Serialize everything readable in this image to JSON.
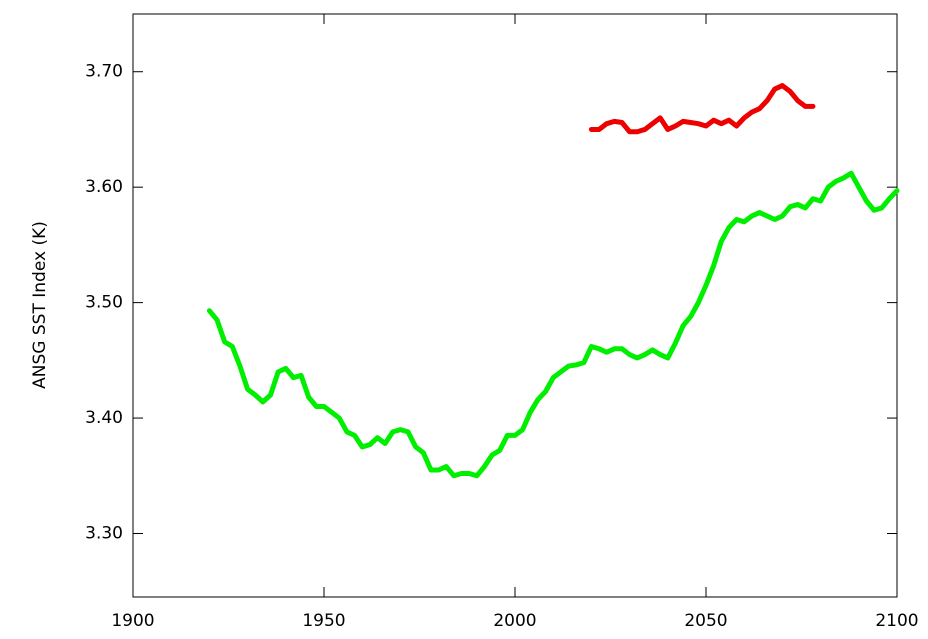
{
  "chart_data": {
    "type": "line",
    "y_label": "ANSG SST Index (K)",
    "xlim": [
      1900,
      2100
    ],
    "xticks": [
      1900,
      1950,
      2000,
      2050,
      2100
    ],
    "ylim": [
      3.245,
      3.75
    ],
    "yticks": [
      {
        "value": 3.3,
        "label": "3.30"
      },
      {
        "value": 3.4,
        "label": "3.40"
      },
      {
        "value": 3.5,
        "label": "3.50"
      },
      {
        "value": 3.6,
        "label": "3.60"
      },
      {
        "value": 3.7,
        "label": "3.70"
      }
    ],
    "grid": false,
    "series": [
      {
        "color": "#00ee00",
        "x": [
          1920,
          1922,
          1924,
          1926,
          1928,
          1930,
          1932,
          1934,
          1936,
          1938,
          1940,
          1942,
          1944,
          1946,
          1948,
          1950,
          1952,
          1954,
          1956,
          1958,
          1960,
          1962,
          1964,
          1966,
          1968,
          1970,
          1972,
          1974,
          1976,
          1978,
          1980,
          1982,
          1984,
          1986,
          1988,
          1990,
          1992,
          1994,
          1996,
          1998,
          2000,
          2002,
          2004,
          2006,
          2008,
          2010,
          2012,
          2014,
          2016,
          2018,
          2020,
          2022,
          2024,
          2026,
          2028,
          2030,
          2032,
          2034,
          2036,
          2038,
          2040,
          2042,
          2044,
          2046,
          2048,
          2050,
          2052,
          2054,
          2056,
          2058,
          2060,
          2062,
          2064,
          2066,
          2068,
          2070,
          2072,
          2074,
          2076,
          2078,
          2080,
          2082,
          2084,
          2086,
          2088,
          2090,
          2092,
          2094,
          2096,
          2098,
          2100
        ],
        "values": [
          3.493,
          3.485,
          3.466,
          3.462,
          3.445,
          3.425,
          3.42,
          3.414,
          3.42,
          3.44,
          3.443,
          3.435,
          3.437,
          3.418,
          3.41,
          3.41,
          3.405,
          3.4,
          3.388,
          3.385,
          3.375,
          3.377,
          3.383,
          3.378,
          3.388,
          3.39,
          3.388,
          3.375,
          3.37,
          3.355,
          3.355,
          3.358,
          3.35,
          3.352,
          3.352,
          3.35,
          3.358,
          3.368,
          3.372,
          3.385,
          3.385,
          3.39,
          3.405,
          3.416,
          3.423,
          3.435,
          3.44,
          3.445,
          3.446,
          3.448,
          3.462,
          3.46,
          3.457,
          3.46,
          3.46,
          3.455,
          3.452,
          3.455,
          3.459,
          3.455,
          3.452,
          3.465,
          3.48,
          3.488,
          3.5,
          3.515,
          3.532,
          3.553,
          3.565,
          3.572,
          3.57,
          3.575,
          3.578,
          3.575,
          3.572,
          3.575,
          3.583,
          3.585,
          3.582,
          3.59,
          3.588,
          3.6,
          3.605,
          3.608,
          3.612,
          3.6,
          3.588,
          3.58,
          3.582,
          3.59,
          3.597
        ]
      },
      {
        "color": "#ee0000",
        "x": [
          2020,
          2022,
          2024,
          2026,
          2028,
          2030,
          2032,
          2034,
          2036,
          2038,
          2040,
          2042,
          2044,
          2046,
          2048,
          2050,
          2052,
          2054,
          2056,
          2058,
          2060,
          2062,
          2064,
          2066,
          2068,
          2070,
          2072,
          2074,
          2076,
          2078
        ],
        "values": [
          3.65,
          3.65,
          3.655,
          3.657,
          3.656,
          3.648,
          3.648,
          3.65,
          3.655,
          3.66,
          3.65,
          3.653,
          3.657,
          3.656,
          3.655,
          3.653,
          3.658,
          3.655,
          3.658,
          3.653,
          3.66,
          3.665,
          3.668,
          3.675,
          3.685,
          3.688,
          3.683,
          3.675,
          3.67,
          3.67
        ]
      }
    ]
  }
}
